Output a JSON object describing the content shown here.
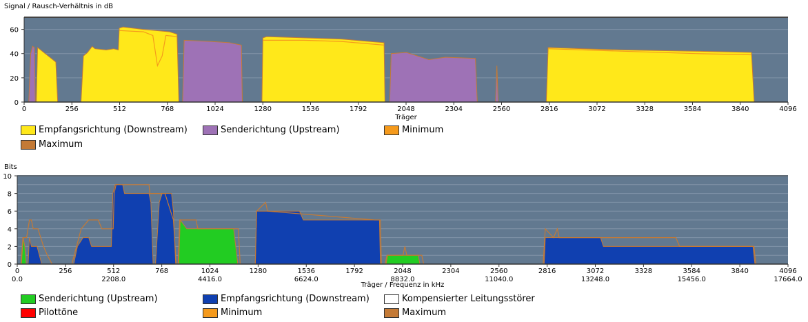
{
  "chart_data": [
    {
      "type": "area",
      "title": "Signal / Rausch-Verhältnis in dB",
      "xlabel": "Träger",
      "ylabel": "",
      "xlim": [
        0,
        4096
      ],
      "ylim": [
        0,
        70
      ],
      "xticks": [
        0,
        256,
        512,
        768,
        1024,
        1280,
        1536,
        1792,
        2048,
        2304,
        2560,
        2816,
        3072,
        3328,
        3584,
        3840,
        4096
      ],
      "yticks": [
        0,
        20,
        40,
        60
      ],
      "grid": true,
      "legend_position": "bottom",
      "colors": {
        "background": "#627990",
        "downstream": "#ffe81a",
        "upstream": "#9e72b6",
        "minimum": "#f59a1c",
        "maximum": "#c47a36"
      },
      "legend": [
        "Empfangsrichtung (Downstream)",
        "Senderichtung (Upstream)",
        "Minimum",
        "Maximum"
      ],
      "series": [
        {
          "name": "Empfangsrichtung (Downstream)",
          "segments": [
            [
              [
                65,
                0
              ],
              [
                72,
                45
              ],
              [
                170,
                33
              ],
              [
                180,
                0
              ]
            ],
            [
              [
                305,
                0
              ],
              [
                318,
                38
              ],
              [
                340,
                41
              ],
              [
                365,
                46
              ],
              [
                380,
                44
              ],
              [
                440,
                43
              ],
              [
                480,
                44
              ],
              [
                505,
                43
              ],
              [
                510,
                61
              ],
              [
                530,
                62
              ],
              [
                640,
                60
              ],
              [
                780,
                58
              ],
              [
                820,
                56
              ],
              [
                830,
                0
              ]
            ],
            [
              [
                1275,
                0
              ],
              [
                1280,
                53
              ],
              [
                1300,
                54
              ],
              [
                1500,
                53
              ],
              [
                1700,
                52
              ],
              [
                1930,
                49
              ],
              [
                1935,
                0
              ]
            ],
            [
              [
                2800,
                0
              ],
              [
                2810,
                45
              ],
              [
                3000,
                44
              ],
              [
                3200,
                43
              ],
              [
                3600,
                42
              ],
              [
                3900,
                41
              ],
              [
                3915,
                0
              ]
            ]
          ]
        },
        {
          "name": "Senderichtung (Upstream)",
          "segments": [
            [
              [
                25,
                0
              ],
              [
                35,
                40
              ],
              [
                45,
                46
              ],
              [
                55,
                45
              ],
              [
                60,
                0
              ]
            ],
            [
              [
                850,
                0
              ],
              [
                858,
                51
              ],
              [
                1000,
                50
              ],
              [
                1100,
                49
              ],
              [
                1165,
                47
              ],
              [
                1170,
                0
              ]
            ],
            [
              [
                1960,
                0
              ],
              [
                1968,
                40
              ],
              [
                2050,
                41
              ],
              [
                2170,
                35
              ],
              [
                2260,
                37
              ],
              [
                2420,
                36
              ],
              [
                2430,
                0
              ]
            ],
            [
              [
                2528,
                0
              ],
              [
                2535,
                30
              ],
              [
                2542,
                0
              ]
            ]
          ]
        },
        {
          "name": "Minimum",
          "segments": [
            [
              [
                512,
                59
              ],
              [
                640,
                58
              ],
              [
                690,
                55
              ],
              [
                715,
                30
              ],
              [
                740,
                38
              ],
              [
                760,
                55
              ],
              [
                820,
                54
              ]
            ],
            [
              [
                1280,
                51
              ],
              [
                1500,
                51
              ],
              [
                1700,
                50
              ],
              [
                1930,
                47
              ]
            ],
            [
              [
                2810,
                44
              ],
              [
                3200,
                42
              ],
              [
                3600,
                40
              ],
              [
                3900,
                39
              ]
            ]
          ]
        }
      ]
    },
    {
      "type": "area",
      "title": "Bits",
      "xlabel": "Träger / Frequenz in kHz",
      "ylabel": "",
      "xlim": [
        0,
        4096
      ],
      "ylim": [
        0,
        10
      ],
      "xticks": [
        0,
        256,
        512,
        768,
        1024,
        1280,
        1536,
        1792,
        2048,
        2304,
        2560,
        2816,
        3072,
        3328,
        3584,
        3840,
        4096
      ],
      "xticks_freq": [
        "0.0",
        "2208.0",
        "4416.0",
        "6624.0",
        "8832.0",
        "11040.0",
        "13248.0",
        "15456.0",
        "17664.0"
      ],
      "yticks": [
        0,
        2,
        4,
        6,
        8,
        10
      ],
      "grid": true,
      "legend_position": "bottom",
      "colors": {
        "background": "#627990",
        "upstream": "#22cc22",
        "downstream": "#1040b0",
        "compensated": "#ffffff",
        "pilot": "#ff0000",
        "minimum": "#f59a1c",
        "maximum": "#c47a36"
      },
      "legend": [
        "Senderichtung (Upstream)",
        "Empfangsrichtung (Downstream)",
        "Kompensierter Leitungsstörer",
        "Pilottöne",
        "Minimum",
        "Maximum"
      ],
      "series": [
        {
          "name": "Empfangsrichtung (Downstream)",
          "segments": [
            [
              [
                58,
                0
              ],
              [
                65,
                3
              ],
              [
                75,
                2
              ],
              [
                105,
                2
              ],
              [
                130,
                0
              ]
            ],
            [
              [
                300,
                0
              ],
              [
                320,
                2
              ],
              [
                350,
                3
              ],
              [
                380,
                3
              ],
              [
                395,
                2
              ],
              [
                500,
                2
              ],
              [
                508,
                8
              ],
              [
                520,
                9
              ],
              [
                560,
                9
              ],
              [
                570,
                8
              ],
              [
                700,
                8
              ],
              [
                710,
                7
              ],
              [
                722,
                0
              ]
            ],
            [
              [
                735,
                0
              ],
              [
                755,
                7
              ],
              [
                770,
                8
              ],
              [
                820,
                8
              ],
              [
                830,
                6
              ],
              [
                842,
                0
              ]
            ],
            [
              [
                1265,
                0
              ],
              [
                1272,
                6
              ],
              [
                1500,
                6
              ],
              [
                1520,
                5
              ],
              [
                1925,
                5
              ],
              [
                1930,
                0
              ]
            ],
            [
              [
                2800,
                0
              ],
              [
                2806,
                3
              ],
              [
                3100,
                3
              ],
              [
                3115,
                2
              ],
              [
                3910,
                2
              ],
              [
                3920,
                0
              ]
            ]
          ]
        },
        {
          "name": "Senderichtung (Upstream)",
          "segments": [
            [
              [
                22,
                0
              ],
              [
                32,
                3
              ],
              [
                40,
                2
              ],
              [
                48,
                0
              ]
            ],
            [
              [
                858,
                0
              ],
              [
                866,
                5
              ],
              [
                900,
                4
              ],
              [
                1150,
                4
              ],
              [
                1172,
                0
              ]
            ],
            [
              [
                1960,
                0
              ],
              [
                1968,
                1
              ],
              [
                2130,
                1
              ],
              [
                2140,
                0
              ]
            ]
          ]
        },
        {
          "name": "Maximum",
          "segments": [
            [
              [
                20,
                0
              ],
              [
                30,
                3
              ],
              [
                50,
                3
              ],
              [
                65,
                5
              ],
              [
                75,
                5
              ],
              [
                85,
                4
              ],
              [
                110,
                4
              ],
              [
                140,
                2
              ],
              [
                160,
                1
              ],
              [
                185,
                0
              ]
            ],
            [
              [
                290,
                0
              ],
              [
                340,
                4
              ],
              [
                380,
                5
              ],
              [
                430,
                5
              ],
              [
                450,
                4
              ],
              [
                510,
                4
              ],
              [
                515,
                8
              ],
              [
                525,
                9
              ],
              [
                700,
                9
              ],
              [
                705,
                8
              ],
              [
                760,
                8
              ],
              [
                785,
                8
              ],
              [
                830,
                5
              ],
              [
                845,
                0
              ]
            ],
            [
              [
                855,
                0
              ],
              [
                863,
                5
              ],
              [
                950,
                5
              ],
              [
                960,
                4
              ],
              [
                1175,
                4
              ],
              [
                1185,
                0
              ]
            ],
            [
              [
                1265,
                0
              ],
              [
                1272,
                6
              ],
              [
                1320,
                7
              ],
              [
                1330,
                6
              ],
              [
                1900,
                5
              ],
              [
                1930,
                5
              ],
              [
                1935,
                0
              ]
            ],
            [
              [
                1955,
                0
              ],
              [
                1965,
                1
              ],
              [
                2050,
                1
              ],
              [
                2060,
                2
              ],
              [
                2070,
                1
              ],
              [
                2150,
                1
              ],
              [
                2160,
                0
              ]
            ],
            [
              [
                2795,
                0
              ],
              [
                2806,
                4
              ],
              [
                2850,
                3
              ],
              [
                2870,
                4
              ],
              [
                2880,
                3
              ],
              [
                3500,
                3
              ],
              [
                3520,
                2
              ],
              [
                3915,
                2
              ],
              [
                3925,
                0
              ]
            ]
          ]
        }
      ]
    }
  ]
}
